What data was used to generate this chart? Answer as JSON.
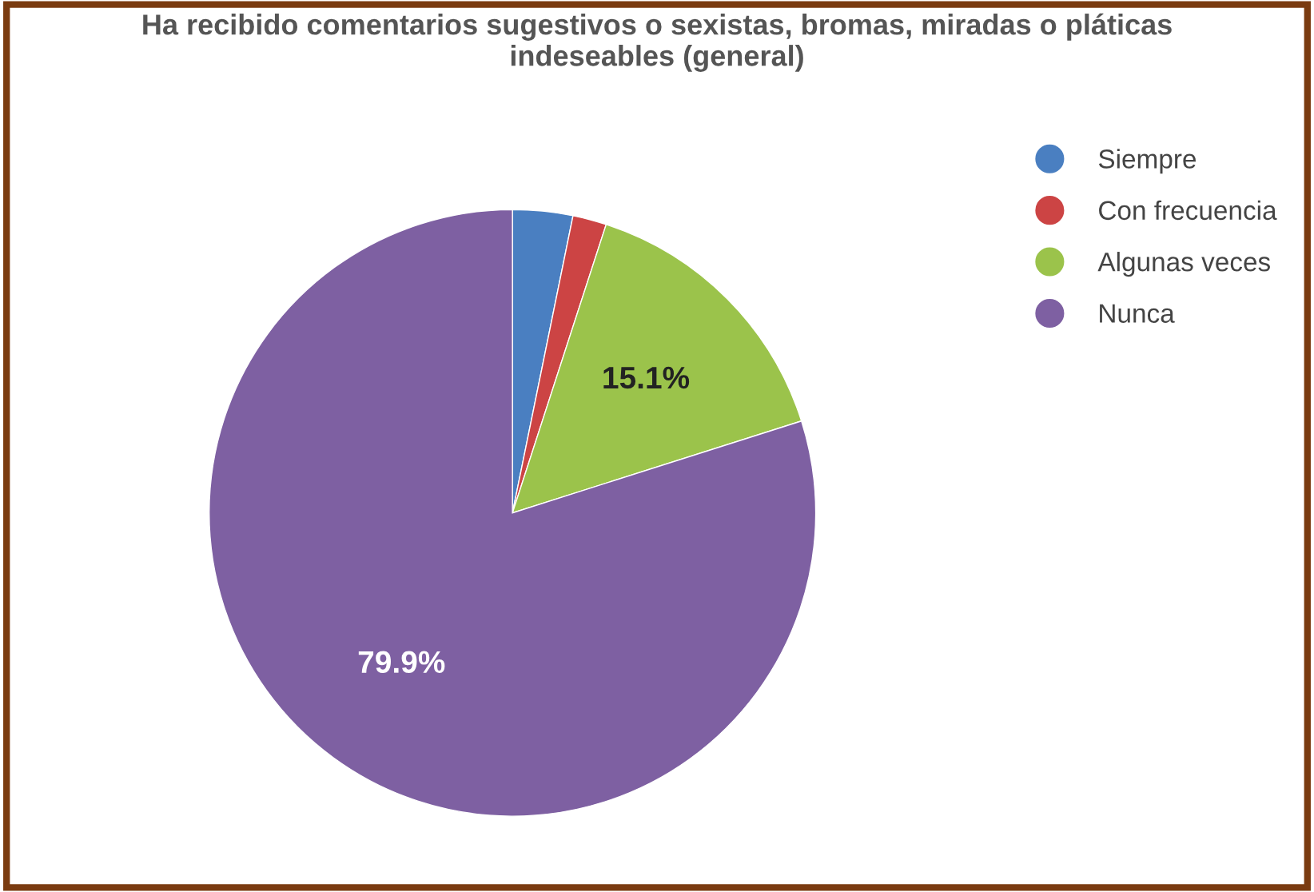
{
  "chart_data": {
    "type": "pie",
    "title": "Ha recibido comentarios sugestivos o sexistas, bromas, miradas o pláticas\nindeseables (general)",
    "categories": [
      "Siempre",
      "Con frecuencia",
      "Algunas veces",
      "Nunca"
    ],
    "values": [
      3.2,
      1.8,
      15.1,
      79.9
    ],
    "value_labels": [
      null,
      null,
      "15.1%",
      "79.9%"
    ],
    "colors": [
      "#4a7fc1",
      "#cc4444",
      "#9bc34b",
      "#7e60a2"
    ],
    "legend": "top right"
  }
}
